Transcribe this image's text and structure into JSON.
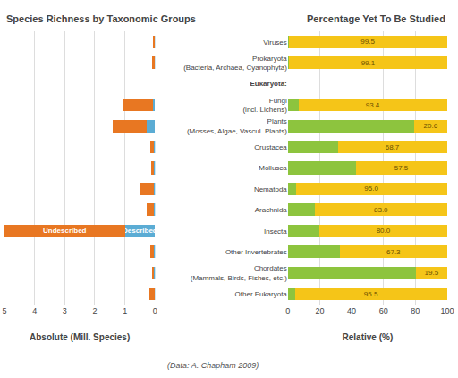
{
  "chart_data": [
    {
      "type": "bar",
      "orientation": "horizontal",
      "stacked": true,
      "title": "Species Richness by Taxonomic Groups",
      "x_label": "Absolute (Mill. Species)",
      "categories": [
        "Viruses",
        "Prokaryota\n(Bacteria, Archaea, Cyanophyta)",
        "Eukaryota:",
        "Fungi\n(incl. Lichens)",
        "Plants\n(Mosses, Algae, Vascul. Plants)",
        "Crustacea",
        "Mollusca",
        "Nematoda",
        "Arachnida",
        "Insecta",
        "Other Invertebrates",
        "Chordates\n(Mammals, Birds, Fishes, etc.)",
        "Other Eukaryota"
      ],
      "series": [
        {
          "name": "Described",
          "color": "#5BACD4",
          "values": [
            0.005,
            0.01,
            null,
            0.07,
            0.27,
            0.04,
            0.05,
            0.025,
            0.05,
            1.0,
            0.04,
            0.045,
            0.018
          ]
        },
        {
          "name": "Undescribed",
          "color": "#E87722",
          "values": [
            0.07,
            0.09,
            null,
            0.97,
            1.15,
            0.11,
            0.065,
            0.47,
            0.22,
            4.0,
            0.105,
            0.045,
            0.175
          ]
        }
      ],
      "xlim": [
        5,
        0
      ],
      "xticks": [
        0,
        1,
        2,
        3,
        4,
        5
      ],
      "grid": true,
      "tick_labels": "x",
      "annotations": [
        {
          "text": "Described",
          "category": "Insecta",
          "series": "Described"
        },
        {
          "text": "Undescribed",
          "category": "Insecta",
          "series": "Undescribed"
        },
        {
          "text": "(Data: A. Chapham 2009)"
        }
      ]
    },
    {
      "type": "bar",
      "orientation": "horizontal",
      "stacked": true,
      "title": "Percentage Yet To Be Studied",
      "x_label": "Relative (%)",
      "categories": [
        "Viruses",
        "Prokaryota\n(Bacteria, Archaea, Cyanophyta)",
        "Eukaryota:",
        "Fungi\n(incl. Lichens)",
        "Plants\n(Mosses, Algae, Vascul. Plants)",
        "Crustacea",
        "Mollusca",
        "Nematoda",
        "Arachnida",
        "Insecta",
        "Other Invertebrates",
        "Chordates\n(Mammals, Birds, Fishes, etc.)",
        "Other Eukaryota"
      ],
      "series": [
        {
          "color": "#8DC43E",
          "values": [
            0.5,
            0.9,
            null,
            6.6,
            79.4,
            31.3,
            42.5,
            5.0,
            17.0,
            20.0,
            32.7,
            80.5,
            4.5
          ]
        },
        {
          "color": "#F5C518",
          "values": [
            99.5,
            99.1,
            null,
            93.4,
            20.6,
            68.7,
            57.5,
            95.0,
            83.0,
            80.0,
            67.3,
            19.5,
            95.5
          ],
          "data_labels": true,
          "value_labels": [
            "99.5",
            "99.1",
            null,
            "93.4",
            "20.6",
            "68.7",
            "57.5",
            "95.0",
            "83.0",
            "80.0",
            "67.3",
            "19.5",
            "95.5"
          ]
        }
      ],
      "xlim": [
        0,
        100
      ],
      "xticks": [
        0,
        20,
        40,
        60,
        80,
        100
      ],
      "grid": true
    }
  ]
}
